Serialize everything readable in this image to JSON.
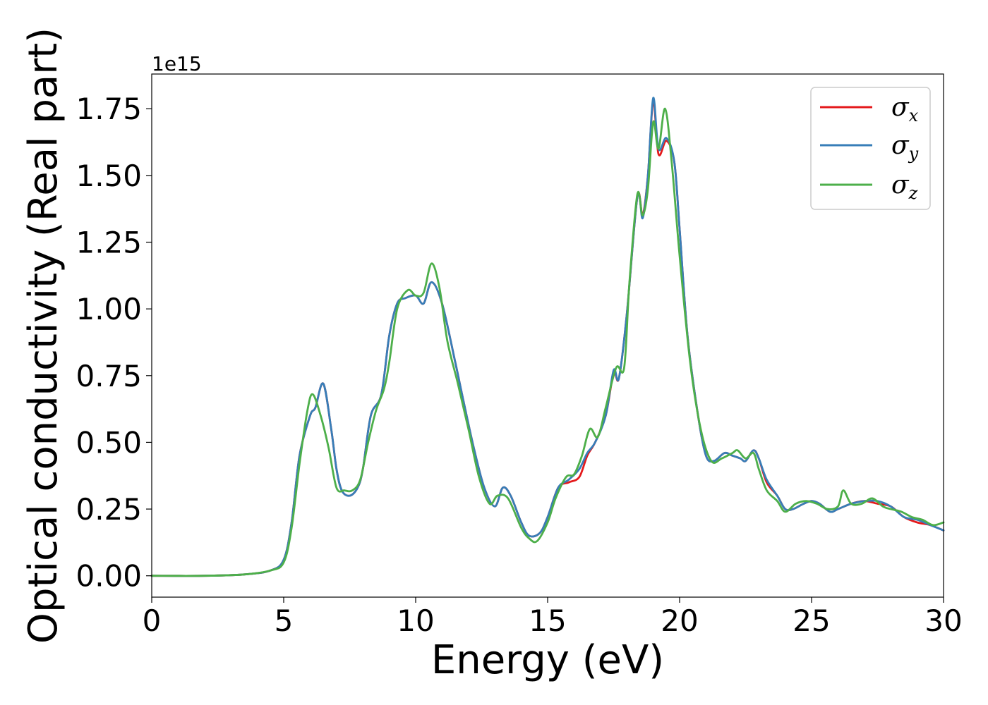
{
  "chart_data": {
    "type": "line",
    "title": "",
    "xlabel": "Energy (eV)",
    "ylabel": "Optical conductivity (Real part)",
    "y_offset_label": "1e15",
    "xlim": [
      0,
      30
    ],
    "ylim": [
      -0.08,
      1.88
    ],
    "x_ticks": [
      0,
      5,
      10,
      15,
      20,
      25,
      30
    ],
    "x_tick_labels": [
      "0",
      "5",
      "10",
      "15",
      "20",
      "25",
      "30"
    ],
    "y_ticks": [
      0,
      0.25,
      0.5,
      0.75,
      1.0,
      1.25,
      1.5,
      1.75
    ],
    "y_tick_labels": [
      "0.00",
      "0.25",
      "0.50",
      "0.75",
      "1.00",
      "1.25",
      "1.50",
      "1.75"
    ],
    "grid": false,
    "legend_position": "top-right",
    "series": [
      {
        "name": "σx",
        "legend_symbol": "σ",
        "legend_subscript": "x",
        "color": "#e41a1c",
        "x": [
          0,
          2,
          3.5,
          4.5,
          5.0,
          5.3,
          5.6,
          6.0,
          6.2,
          6.5,
          6.8,
          7.0,
          7.2,
          7.5,
          7.8,
          8.0,
          8.3,
          8.7,
          9.0,
          9.3,
          9.6,
          10.0,
          10.3,
          10.6,
          11.0,
          11.5,
          11.8,
          12.2,
          12.6,
          13.0,
          13.3,
          13.6,
          14.0,
          14.3,
          14.7,
          15.0,
          15.4,
          15.8,
          16.2,
          16.5,
          16.8,
          17.2,
          17.5,
          17.7,
          18.0,
          18.4,
          18.6,
          18.8,
          19.0,
          19.2,
          19.5,
          19.8,
          20.0,
          20.3,
          20.7,
          21.0,
          21.3,
          21.7,
          22.0,
          22.3,
          22.5,
          22.8,
          23.0,
          23.3,
          23.7,
          24.0,
          24.3,
          24.7,
          25.0,
          25.3,
          25.7,
          26.0,
          26.5,
          27.0,
          27.5,
          28.0,
          28.5,
          29.0,
          29.5,
          30.0
        ],
        "values": [
          0.0,
          0.0,
          0.005,
          0.02,
          0.06,
          0.2,
          0.45,
          0.6,
          0.63,
          0.72,
          0.55,
          0.4,
          0.32,
          0.3,
          0.33,
          0.4,
          0.6,
          0.68,
          0.9,
          1.02,
          1.04,
          1.05,
          1.02,
          1.1,
          1.02,
          0.8,
          0.66,
          0.48,
          0.33,
          0.26,
          0.33,
          0.3,
          0.2,
          0.15,
          0.16,
          0.22,
          0.33,
          0.35,
          0.37,
          0.45,
          0.5,
          0.6,
          0.76,
          0.74,
          0.98,
          1.42,
          1.35,
          1.5,
          1.78,
          1.58,
          1.63,
          1.55,
          1.3,
          0.9,
          0.6,
          0.45,
          0.43,
          0.46,
          0.45,
          0.44,
          0.43,
          0.47,
          0.44,
          0.35,
          0.3,
          0.25,
          0.25,
          0.27,
          0.28,
          0.27,
          0.24,
          0.25,
          0.27,
          0.28,
          0.27,
          0.26,
          0.22,
          0.2,
          0.19,
          0.17
        ]
      },
      {
        "name": "σy",
        "legend_symbol": "σ",
        "legend_subscript": "y",
        "color": "#377eb8",
        "x": [
          0,
          2,
          3.5,
          4.5,
          5.0,
          5.3,
          5.6,
          6.0,
          6.2,
          6.5,
          6.8,
          7.0,
          7.2,
          7.5,
          7.8,
          8.0,
          8.3,
          8.7,
          9.0,
          9.3,
          9.6,
          10.0,
          10.3,
          10.6,
          11.0,
          11.5,
          11.8,
          12.2,
          12.6,
          13.0,
          13.3,
          13.6,
          14.0,
          14.3,
          14.7,
          15.0,
          15.4,
          15.8,
          16.2,
          16.5,
          16.8,
          17.2,
          17.5,
          17.7,
          18.0,
          18.4,
          18.6,
          18.8,
          19.0,
          19.2,
          19.5,
          19.8,
          20.0,
          20.3,
          20.7,
          21.0,
          21.3,
          21.7,
          22.0,
          22.3,
          22.5,
          22.8,
          23.0,
          23.3,
          23.7,
          24.0,
          24.3,
          24.7,
          25.0,
          25.3,
          25.7,
          26.0,
          26.5,
          27.0,
          27.5,
          28.0,
          28.5,
          29.0,
          29.5,
          30.0
        ],
        "values": [
          0.0,
          0.0,
          0.005,
          0.02,
          0.06,
          0.2,
          0.45,
          0.6,
          0.63,
          0.72,
          0.55,
          0.4,
          0.32,
          0.3,
          0.33,
          0.4,
          0.6,
          0.68,
          0.9,
          1.02,
          1.04,
          1.05,
          1.02,
          1.1,
          1.02,
          0.8,
          0.66,
          0.48,
          0.33,
          0.26,
          0.33,
          0.3,
          0.2,
          0.15,
          0.16,
          0.22,
          0.33,
          0.36,
          0.4,
          0.46,
          0.5,
          0.6,
          0.77,
          0.74,
          0.98,
          1.42,
          1.34,
          1.5,
          1.79,
          1.6,
          1.64,
          1.55,
          1.3,
          0.9,
          0.6,
          0.45,
          0.43,
          0.46,
          0.45,
          0.44,
          0.43,
          0.47,
          0.44,
          0.36,
          0.3,
          0.25,
          0.25,
          0.27,
          0.28,
          0.27,
          0.24,
          0.25,
          0.27,
          0.28,
          0.28,
          0.26,
          0.22,
          0.21,
          0.19,
          0.17
        ]
      },
      {
        "name": "σz",
        "legend_symbol": "σ",
        "legend_subscript": "z",
        "color": "#4daf4a",
        "x": [
          0,
          2,
          3.5,
          4.5,
          5.0,
          5.3,
          5.6,
          5.9,
          6.1,
          6.4,
          6.7,
          7.0,
          7.3,
          7.6,
          7.9,
          8.2,
          8.5,
          8.8,
          9.0,
          9.3,
          9.7,
          10.0,
          10.3,
          10.6,
          10.9,
          11.2,
          11.6,
          12.0,
          12.4,
          12.8,
          13.1,
          13.5,
          14.0,
          14.3,
          14.6,
          15.0,
          15.3,
          15.7,
          16.0,
          16.3,
          16.6,
          16.9,
          17.2,
          17.6,
          17.9,
          18.1,
          18.4,
          18.6,
          18.8,
          19.0,
          19.2,
          19.45,
          19.7,
          20.0,
          20.4,
          20.8,
          21.2,
          21.6,
          22.0,
          22.2,
          22.5,
          22.8,
          23.0,
          23.3,
          23.7,
          24.0,
          24.4,
          24.8,
          25.2,
          25.6,
          26.0,
          26.2,
          26.5,
          26.9,
          27.3,
          27.7,
          28.0,
          28.4,
          28.8,
          29.2,
          29.6,
          30.0
        ],
        "values": [
          0.0,
          0.0,
          0.005,
          0.02,
          0.05,
          0.18,
          0.42,
          0.62,
          0.68,
          0.6,
          0.48,
          0.33,
          0.32,
          0.32,
          0.36,
          0.5,
          0.62,
          0.7,
          0.8,
          1.0,
          1.07,
          1.05,
          1.06,
          1.17,
          1.08,
          0.88,
          0.72,
          0.55,
          0.37,
          0.27,
          0.3,
          0.29,
          0.18,
          0.14,
          0.13,
          0.2,
          0.29,
          0.37,
          0.38,
          0.45,
          0.55,
          0.52,
          0.63,
          0.78,
          0.78,
          1.1,
          1.43,
          1.35,
          1.45,
          1.7,
          1.6,
          1.75,
          1.55,
          1.2,
          0.8,
          0.55,
          0.43,
          0.44,
          0.46,
          0.47,
          0.44,
          0.46,
          0.4,
          0.32,
          0.28,
          0.24,
          0.27,
          0.28,
          0.27,
          0.25,
          0.26,
          0.32,
          0.27,
          0.27,
          0.29,
          0.26,
          0.25,
          0.24,
          0.22,
          0.21,
          0.19,
          0.2
        ]
      }
    ]
  }
}
